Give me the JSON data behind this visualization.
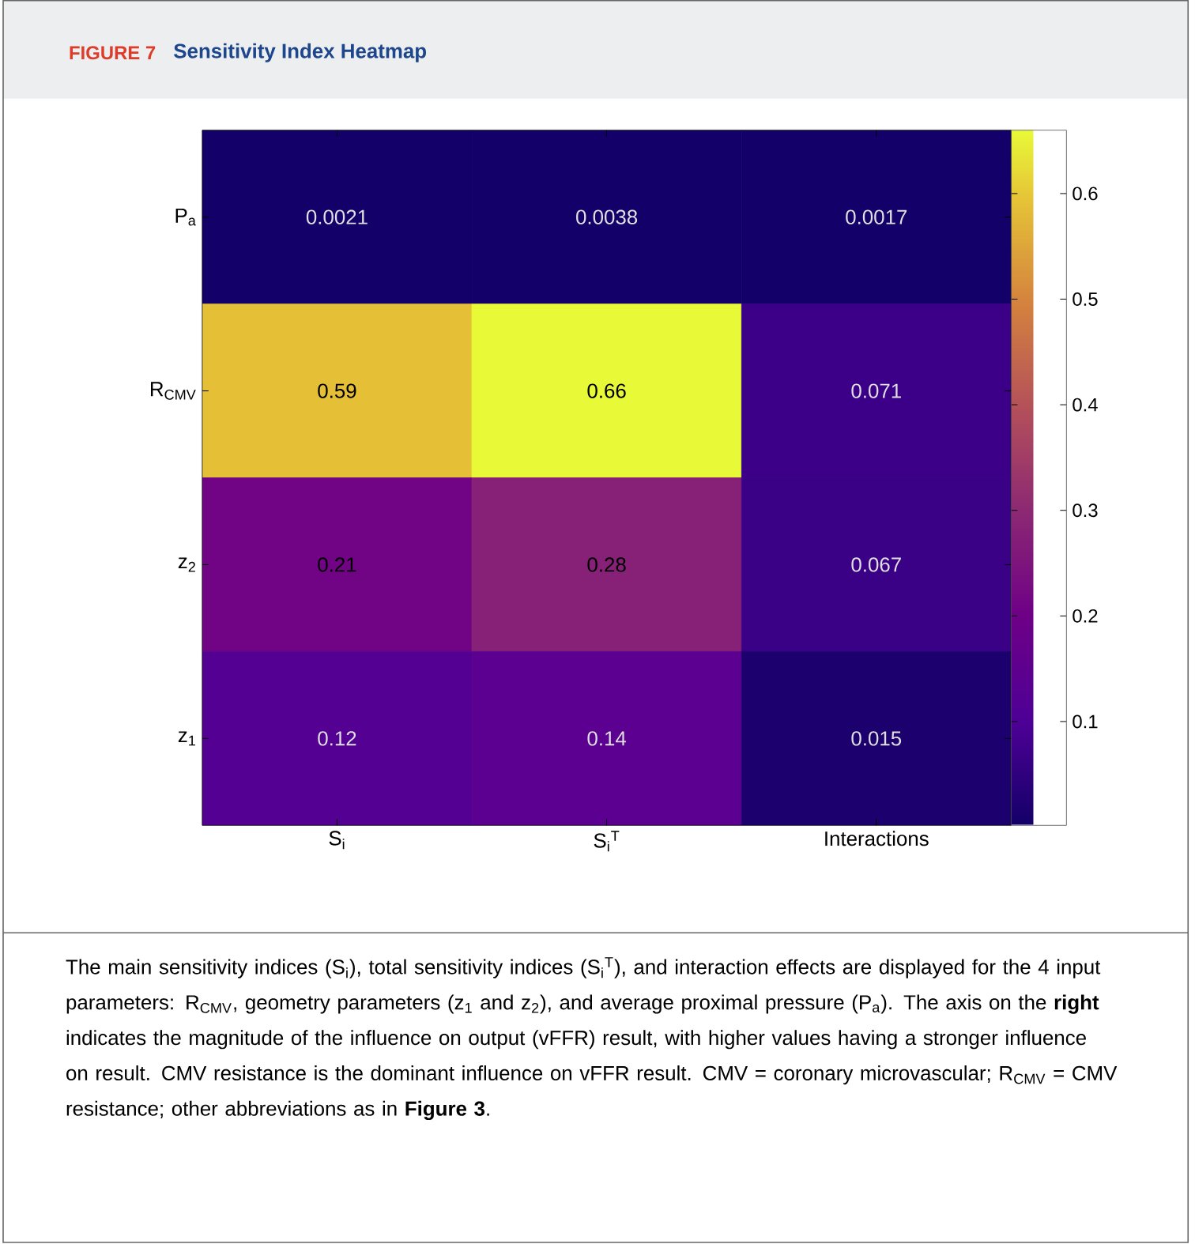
{
  "chart_data": {
    "type": "heatmap",
    "title": "FIGURE 7",
    "subtitle": "Sensitivity Index Heatmap",
    "categories": [
      "S$_{i}$",
      "S$_{i}$$^{T}$",
      "Interactions"
    ],
    "y_categories": [
      "P$_{a}$",
      "R$_{CMV}$",
      "z$_{2}$",
      "z$_{1}$"
    ],
    "cells": [
      [
        0.0021,
        0.0038,
        0.0017
      ],
      [
        0.59,
        0.66,
        0.071
      ],
      [
        0.21,
        0.28,
        0.067
      ],
      [
        0.12,
        0.14,
        0.015
      ]
    ],
    "data_labels": true,
    "clim": [
      0.0017,
      0.66
    ],
    "cticks": [
      0.1,
      0.2,
      0.3,
      0.4,
      0.5,
      0.6
    ],
    "annotations": [
      "The main sensitivity indices (S$_{i}$), total sensitivity indices (S$_{i}$$^{T}$), and interaction effects are displayed for the 4 input parameters: R$_{CMV}$, geometry parameters (z$_{1}$ and z$_{2}$), and average proximal pressure (P$_{a}$). The axis on the **right** indicates the magnitude of the influence on output (vFFR) result, with higher values having a stronger influence on result. CMV resistance is the dominant influence on vFFR result. CMV = coronary microvascular; R$_{CMV}$ = CMV resistance; other abbreviations as in **Figure 3**."
    ]
  }
}
